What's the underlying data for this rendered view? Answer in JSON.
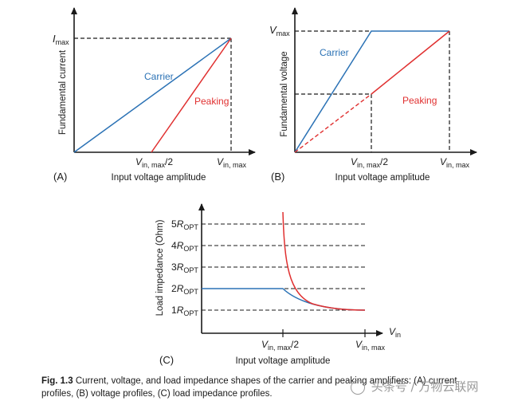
{
  "colors": {
    "carrier": "#2b72b5",
    "peaking": "#e03030",
    "axis": "#1a1a1a",
    "text": "#1a1a1a"
  },
  "panel_a": {
    "label": "(A)",
    "ylabel": "Fundamental current",
    "xlabel": "Input voltage amplitude",
    "ytick": "I",
    "ytick_sub": "max",
    "xtick_half": "V",
    "xtick_half_sub": "in, max",
    "xtick_half_suffix": "/2",
    "xtick_full": "V",
    "xtick_full_sub": "in, max",
    "carrier_label": "Carrier",
    "peaking_label": "Peaking"
  },
  "panel_b": {
    "label": "(B)",
    "ylabel": "Fundamental voltage",
    "xlabel": "Input voltage amplitude",
    "ytick": "V",
    "ytick_sub": "max",
    "xtick_half": "V",
    "xtick_half_sub": "in, max",
    "xtick_half_suffix": "/2",
    "xtick_full": "V",
    "xtick_full_sub": "in, max",
    "carrier_label": "Carrier",
    "peaking_label": "Peaking"
  },
  "panel_c": {
    "label": "(C)",
    "ylabel": "Load impedance (Ohm)",
    "xlabel": "Input voltage amplitude",
    "x_axis_label": "V",
    "x_axis_sub": "in",
    "yticks": [
      {
        "num": "5",
        "r": "R",
        "sub": "OPT"
      },
      {
        "num": "4",
        "r": "R",
        "sub": "OPT"
      },
      {
        "num": "3",
        "r": "R",
        "sub": "OPT"
      },
      {
        "num": "2",
        "r": "R",
        "sub": "OPT"
      },
      {
        "num": "1",
        "r": "R",
        "sub": "OPT"
      }
    ],
    "xtick_half": "V",
    "xtick_half_sub": "in, max",
    "xtick_half_suffix": "/2",
    "xtick_full": "V",
    "xtick_full_sub": "in, max"
  },
  "caption": {
    "figure_label": "Fig. 1.3",
    "line1": "Current, voltage, and load impedance shapes of the carrier and peaking amplifiers: (A) current",
    "line2": "profiles, (B) voltage profiles, (C) load impedance profiles."
  },
  "watermark": "头条号 / 万物云联网"
}
